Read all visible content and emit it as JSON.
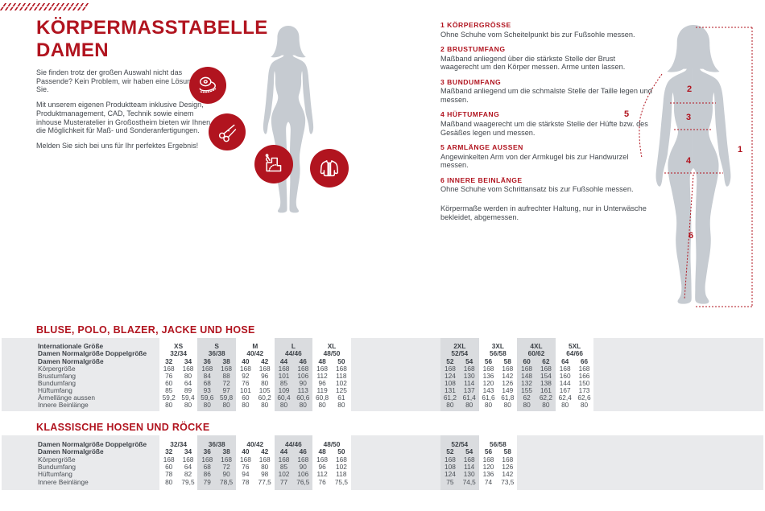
{
  "decoration": {
    "dash_count": 18
  },
  "header": {
    "title_line1": "KÖRPERMASSTABELLE",
    "title_line2": "DAMEN"
  },
  "intro": {
    "p1": "Sie finden trotz der großen Auswahl nicht das Passende? Kein Problem, wir haben eine Lösung für Sie.",
    "p2": "Mit unserem eigenen Produktteam inklusive Design, Produktmanagement, CAD, Technik sowie einem inhouse Musteratelier in Großostheim bieten wir Ihnen die Möglichkeit für Maß- und Sonderanfertigungen.",
    "p3": "Melden Sie sich bei uns für Ihr perfektes Ergebnis!"
  },
  "icons": [
    "measuring-tape",
    "scissors",
    "sewing-pattern",
    "jacket"
  ],
  "instructions": [
    {
      "num": "1",
      "title": "KÖRPERGRÖSSE",
      "text": "Ohne Schuhe vom Scheitelpunkt bis zur Fußsohle messen."
    },
    {
      "num": "2",
      "title": "BRUSTUMFANG",
      "text": "Maßband anliegend über die stärkste Stelle der Brust waagerecht um den Körper messen. Arme unten lassen."
    },
    {
      "num": "3",
      "title": "BUNDUMFANG",
      "text": "Maßband anliegend um die schmalste Stelle der Taille legen und messen."
    },
    {
      "num": "4",
      "title": "HÜFTUMFANG",
      "text": "Maßband waagerecht um die stärkste Stelle der Hüfte bzw. des Gesäßes legen und messen."
    },
    {
      "num": "5",
      "title": "ARMLÄNGE AUSSEN",
      "text": "Angewinkelten Arm von der Armkugel bis zur Handwurzel messen."
    },
    {
      "num": "6",
      "title": "INNERE BEINLÄNGE",
      "text": "Ohne Schuhe vom Schrittansatz bis zur Fußsohle messen."
    }
  ],
  "instructions_note": "Körpermaße werden in aufrechter Haltung, nur in Unterwäsche bekleidet, abgemessen.",
  "diagram": {
    "markers": [
      "1",
      "2",
      "3",
      "4",
      "5",
      "6"
    ]
  },
  "colors": {
    "accent_red": "#b1141f",
    "silhouette_gray": "#c6cbd1",
    "band_gray": "#e9eaec",
    "panel_gray": "#dadcdf"
  },
  "tables": [
    {
      "heading": "BLUSE, POLO, BLAZER, JACKE UND HOSE",
      "header_labels": {
        "international": "Internationale Größe",
        "double": "Damen Normalgröße Doppelgröße",
        "sizes": "Damen Normalgröße"
      },
      "groups": [
        {
          "international": "XS",
          "double_size": "32/34",
          "sizes": [
            "32",
            "34"
          ]
        },
        {
          "international": "S",
          "double_size": "36/38",
          "sizes": [
            "36",
            "38"
          ]
        },
        {
          "international": "M",
          "double_size": "40/42",
          "sizes": [
            "40",
            "42"
          ]
        },
        {
          "international": "L",
          "double_size": "44/46",
          "sizes": [
            "44",
            "46"
          ]
        },
        {
          "international": "XL",
          "double_size": "48/50",
          "sizes": [
            "48",
            "50"
          ]
        },
        {
          "international": "2XL",
          "double_size": "52/54",
          "sizes": [
            "52",
            "54"
          ]
        },
        {
          "international": "3XL",
          "double_size": "56/58",
          "sizes": [
            "56",
            "58"
          ]
        },
        {
          "international": "4XL",
          "double_size": "60/62",
          "sizes": [
            "60",
            "62"
          ]
        },
        {
          "international": "5XL",
          "double_size": "64/66",
          "sizes": [
            "64",
            "66"
          ]
        }
      ],
      "measure_rows": [
        {
          "label": "Körpergröße",
          "values": [
            "168",
            "168",
            "168",
            "168",
            "168",
            "168",
            "168",
            "168",
            "168",
            "168",
            "168",
            "168",
            "168",
            "168",
            "168",
            "168",
            "168",
            "168"
          ]
        },
        {
          "label": "Brustumfang",
          "values": [
            "76",
            "80",
            "84",
            "88",
            "92",
            "96",
            "101",
            "106",
            "112",
            "118",
            "124",
            "130",
            "136",
            "142",
            "148",
            "154",
            "160",
            "166"
          ]
        },
        {
          "label": "Bundumfang",
          "values": [
            "60",
            "64",
            "68",
            "72",
            "76",
            "80",
            "85",
            "90",
            "96",
            "102",
            "108",
            "114",
            "120",
            "126",
            "132",
            "138",
            "144",
            "150"
          ]
        },
        {
          "label": "Hüftumfang",
          "values": [
            "85",
            "89",
            "93",
            "97",
            "101",
            "105",
            "109",
            "113",
            "119",
            "125",
            "131",
            "137",
            "143",
            "149",
            "155",
            "161",
            "167",
            "173"
          ]
        },
        {
          "label": "Ärmellänge aussen",
          "values": [
            "59,2",
            "59,4",
            "59,6",
            "59,8",
            "60",
            "60,2",
            "60,4",
            "60,6",
            "60,8",
            "61",
            "61,2",
            "61,4",
            "61,6",
            "61,8",
            "62",
            "62,2",
            "62,4",
            "62,6"
          ]
        },
        {
          "label": "Innere Beinlänge",
          "values": [
            "80",
            "80",
            "80",
            "80",
            "80",
            "80",
            "80",
            "80",
            "80",
            "80",
            "80",
            "80",
            "80",
            "80",
            "80",
            "80",
            "80",
            "80"
          ]
        }
      ]
    },
    {
      "heading": "KLASSISCHE HOSEN UND RÖCKE",
      "header_labels": {
        "double": "Damen Normalgröße Doppelgröße",
        "sizes": "Damen Normalgröße"
      },
      "groups": [
        {
          "double_size": "32/34",
          "sizes": [
            "32",
            "34"
          ]
        },
        {
          "double_size": "36/38",
          "sizes": [
            "36",
            "38"
          ]
        },
        {
          "double_size": "40/42",
          "sizes": [
            "40",
            "42"
          ]
        },
        {
          "double_size": "44/46",
          "sizes": [
            "44",
            "46"
          ]
        },
        {
          "double_size": "48/50",
          "sizes": [
            "48",
            "50"
          ]
        },
        {
          "double_size": "52/54",
          "sizes": [
            "52",
            "54"
          ]
        },
        {
          "double_size": "56/58",
          "sizes": [
            "56",
            "58"
          ]
        }
      ],
      "measure_rows": [
        {
          "label": "Körpergröße",
          "values": [
            "168",
            "168",
            "168",
            "168",
            "168",
            "168",
            "168",
            "168",
            "168",
            "168",
            "168",
            "168",
            "168",
            "168"
          ]
        },
        {
          "label": "Bundumfang",
          "values": [
            "60",
            "64",
            "68",
            "72",
            "76",
            "80",
            "85",
            "90",
            "96",
            "102",
            "108",
            "114",
            "120",
            "126"
          ]
        },
        {
          "label": "Hüftumfang",
          "values": [
            "78",
            "82",
            "86",
            "90",
            "94",
            "98",
            "102",
            "106",
            "112",
            "118",
            "124",
            "130",
            "136",
            "142"
          ]
        },
        {
          "label": "Innere Beinlänge",
          "values": [
            "80",
            "79,5",
            "79",
            "78,5",
            "78",
            "77,5",
            "77",
            "76,5",
            "76",
            "75,5",
            "75",
            "74,5",
            "74",
            "73,5"
          ]
        }
      ]
    }
  ]
}
